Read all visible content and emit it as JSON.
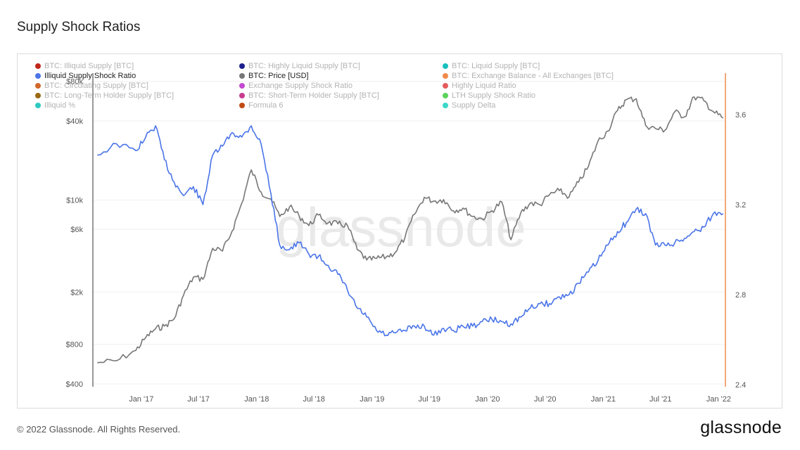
{
  "page": {
    "title": "Supply Shock Ratios",
    "copyright": "© 2022 Glassnode. All Rights Reserved.",
    "logo_text": "glassnode",
    "watermark": "glassnode"
  },
  "legend": [
    {
      "label": "BTC: Illiquid Supply [BTC]",
      "color": "#c0281b",
      "active": false
    },
    {
      "label": "BTC: Highly Liquid Supply [BTC]",
      "color": "#1c1f8f",
      "active": false
    },
    {
      "label": "BTC: Liquid Supply [BTC]",
      "color": "#18bfbf",
      "active": false
    },
    {
      "label": "Illiquid Supply Shock Ratio",
      "color": "#4a74e8",
      "active": true
    },
    {
      "label": "BTC: Price [USD]",
      "color": "#777777",
      "active": true
    },
    {
      "label": "BTC: Exchange Balance - All Exchanges [BTC]",
      "color": "#f08a4b",
      "active": false
    },
    {
      "label": "BTC: Circulating Supply [BTC]",
      "color": "#d2672a",
      "active": false
    },
    {
      "label": "Exchange Supply Shock Ratio",
      "color": "#c24ad0",
      "active": false
    },
    {
      "label": "Highly Liquid Ratio",
      "color": "#e55b5b",
      "active": false
    },
    {
      "label": "BTC: Long-Term Holder Supply [BTC]",
      "color": "#9a6a14",
      "active": false
    },
    {
      "label": "BTC: Short-Term Holder Supply [BTC]",
      "color": "#c93b8e",
      "active": false
    },
    {
      "label": "LTH Supply Shock Ratio",
      "color": "#5ad45a",
      "active": false
    },
    {
      "label": "Illiquid %",
      "color": "#2ec9c0",
      "active": false
    },
    {
      "label": "Formula 6",
      "color": "#c04a14",
      "active": false
    },
    {
      "label": "Supply Delta",
      "color": "#3ad8c8",
      "active": false
    }
  ],
  "chart_data": {
    "type": "line",
    "x_ticks": [
      "Jan '17",
      "Jul '17",
      "Jan '18",
      "Jul '18",
      "Jan '19",
      "Jul '19",
      "Jan '20",
      "Jul '20",
      "Jan '21",
      "Jul '21",
      "Jan '22"
    ],
    "y_left": {
      "scale": "log",
      "range": [
        400,
        80000
      ],
      "ticks": [
        "$80k",
        "$40k",
        "$10k",
        "$6k",
        "$2k",
        "$800",
        "$400"
      ],
      "tick_values": [
        80000,
        40000,
        10000,
        6000,
        2000,
        800,
        400
      ]
    },
    "y_right": {
      "scale": "linear",
      "range": [
        2.4,
        3.8
      ],
      "ticks": [
        "3.6",
        "3.2",
        "2.8",
        "2.4"
      ],
      "tick_values": [
        3.6,
        3.2,
        2.8,
        2.4
      ]
    },
    "series": [
      {
        "name": "BTC: Price [USD]",
        "axis": "left",
        "color": "#777777",
        "x": [
          "2016-08",
          "2016-10",
          "2016-12",
          "2017-01",
          "2017-02",
          "2017-03",
          "2017-04",
          "2017-05",
          "2017-06",
          "2017-07",
          "2017-08",
          "2017-09",
          "2017-10",
          "2017-11",
          "2017-12",
          "2018-01",
          "2018-02",
          "2018-03",
          "2018-04",
          "2018-05",
          "2018-06",
          "2018-07",
          "2018-08",
          "2018-09",
          "2018-10",
          "2018-11",
          "2018-12",
          "2019-01",
          "2019-02",
          "2019-03",
          "2019-04",
          "2019-05",
          "2019-06",
          "2019-07",
          "2019-08",
          "2019-09",
          "2019-10",
          "2019-11",
          "2019-12",
          "2020-01",
          "2020-02",
          "2020-03",
          "2020-04",
          "2020-05",
          "2020-06",
          "2020-07",
          "2020-08",
          "2020-09",
          "2020-10",
          "2020-11",
          "2020-12",
          "2021-01",
          "2021-02",
          "2021-03",
          "2021-04",
          "2021-05",
          "2021-06",
          "2021-07",
          "2021-08",
          "2021-09",
          "2021-10",
          "2021-11",
          "2021-12",
          "2022-01"
        ],
        "values": [
          580,
          600,
          720,
          900,
          1050,
          1100,
          1250,
          1900,
          2600,
          2500,
          4300,
          4100,
          5800,
          9500,
          17000,
          11500,
          10200,
          7500,
          8900,
          7600,
          6400,
          7700,
          6700,
          6600,
          6400,
          4200,
          3500,
          3600,
          3700,
          4000,
          5200,
          7800,
          10500,
          9800,
          10100,
          8300,
          8700,
          7500,
          7200,
          8300,
          9700,
          5000,
          8000,
          9500,
          9200,
          11000,
          11800,
          10600,
          13700,
          18000,
          28000,
          33500,
          48000,
          58000,
          59000,
          37000,
          35000,
          34000,
          47000,
          43000,
          61000,
          57000,
          47000,
          42000
        ]
      },
      {
        "name": "Illiquid Supply Shock Ratio",
        "axis": "right",
        "color": "#4a74e8",
        "x": [
          "2016-08",
          "2016-10",
          "2016-12",
          "2017-01",
          "2017-02",
          "2017-03",
          "2017-04",
          "2017-05",
          "2017-06",
          "2017-07",
          "2017-08",
          "2017-09",
          "2017-10",
          "2017-11",
          "2017-12",
          "2018-01",
          "2018-02",
          "2018-03",
          "2018-04",
          "2018-05",
          "2018-06",
          "2018-07",
          "2018-08",
          "2018-09",
          "2018-10",
          "2018-11",
          "2018-12",
          "2019-01",
          "2019-02",
          "2019-03",
          "2019-04",
          "2019-05",
          "2019-06",
          "2019-07",
          "2019-08",
          "2019-09",
          "2019-10",
          "2019-11",
          "2019-12",
          "2020-01",
          "2020-02",
          "2020-03",
          "2020-04",
          "2020-05",
          "2020-06",
          "2020-07",
          "2020-08",
          "2020-09",
          "2020-10",
          "2020-11",
          "2020-12",
          "2021-01",
          "2021-02",
          "2021-03",
          "2021-04",
          "2021-05",
          "2021-06",
          "2021-07",
          "2021-08",
          "2021-09",
          "2021-10",
          "2021-11",
          "2021-12",
          "2022-01"
        ],
        "values": [
          3.42,
          3.47,
          3.44,
          3.5,
          3.55,
          3.4,
          3.3,
          3.24,
          3.28,
          3.2,
          3.42,
          3.46,
          3.52,
          3.5,
          3.55,
          3.47,
          3.25,
          3.02,
          3.0,
          3.03,
          2.98,
          2.97,
          2.93,
          2.89,
          2.82,
          2.74,
          2.7,
          2.64,
          2.62,
          2.63,
          2.64,
          2.66,
          2.66,
          2.62,
          2.65,
          2.64,
          2.66,
          2.66,
          2.68,
          2.69,
          2.68,
          2.67,
          2.7,
          2.74,
          2.76,
          2.76,
          2.79,
          2.8,
          2.85,
          2.9,
          2.95,
          3.02,
          3.08,
          3.12,
          3.18,
          3.16,
          3.02,
          3.02,
          3.03,
          3.05,
          3.08,
          3.1,
          3.16,
          3.16
        ]
      }
    ],
    "title": "Supply Shock Ratios",
    "grid": true,
    "legend_position": "top-left"
  }
}
